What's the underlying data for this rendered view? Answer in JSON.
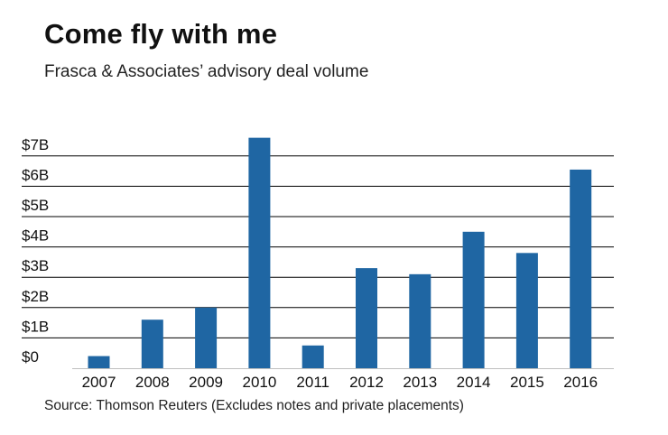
{
  "header": {
    "title": "Come fly with me",
    "subtitle": "Frasca & Associates’ advisory deal volume"
  },
  "footer": {
    "source": "Source: Thomson Reuters (Excludes notes and private placements)"
  },
  "chart_data": {
    "type": "bar",
    "categories": [
      "2007",
      "2008",
      "2009",
      "2010",
      "2011",
      "2012",
      "2013",
      "2014",
      "2015",
      "2016"
    ],
    "values": [
      0.4,
      1.6,
      2.0,
      7.6,
      0.75,
      3.3,
      3.1,
      4.5,
      3.8,
      6.55
    ],
    "yticks": [
      0,
      1,
      2,
      3,
      4,
      5,
      6,
      7
    ],
    "ytick_labels": [
      "$0",
      "$1B",
      "$2B",
      "$3B",
      "$4B",
      "$5B",
      "$6B",
      "$7B"
    ],
    "ylim": [
      0,
      7.6
    ],
    "grid": true,
    "bar_color": "#1f66a3",
    "gridline_color": "#000000",
    "xlabel": "",
    "ylabel": ""
  }
}
